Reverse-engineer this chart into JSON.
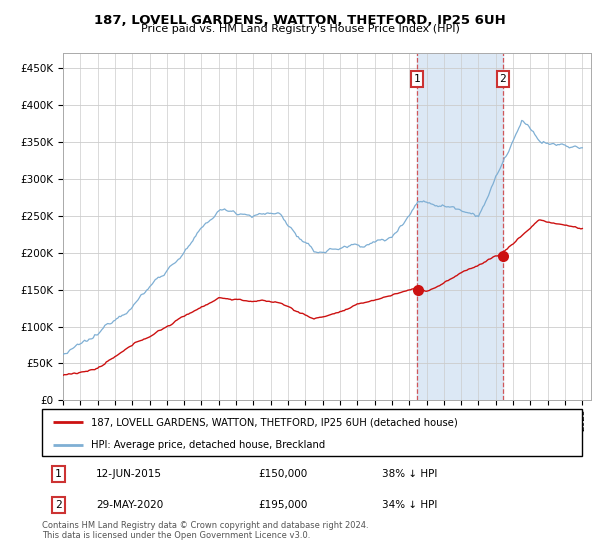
{
  "title": "187, LOVELL GARDENS, WATTON, THETFORD, IP25 6UH",
  "subtitle": "Price paid vs. HM Land Registry's House Price Index (HPI)",
  "ylabel_ticks": [
    "£0",
    "£50K",
    "£100K",
    "£150K",
    "£200K",
    "£250K",
    "£300K",
    "£350K",
    "£400K",
    "£450K"
  ],
  "ytick_values": [
    0,
    50000,
    100000,
    150000,
    200000,
    250000,
    300000,
    350000,
    400000,
    450000
  ],
  "ylim": [
    0,
    470000
  ],
  "hpi_color": "#7fafd4",
  "price_color": "#cc1111",
  "shade_color": "#dce8f5",
  "t1_year": 2015.46,
  "t2_year": 2020.41,
  "t1_price": 150000,
  "t2_price": 195000,
  "legend_line1": "187, LOVELL GARDENS, WATTON, THETFORD, IP25 6UH (detached house)",
  "legend_line2": "HPI: Average price, detached house, Breckland",
  "footnote": "Contains HM Land Registry data © Crown copyright and database right 2024.\nThis data is licensed under the Open Government Licence v3.0.",
  "table_row1": [
    "1",
    "12-JUN-2015",
    "£150,000",
    "38% ↓ HPI"
  ],
  "table_row2": [
    "2",
    "29-MAY-2020",
    "£195,000",
    "34% ↓ HPI"
  ]
}
